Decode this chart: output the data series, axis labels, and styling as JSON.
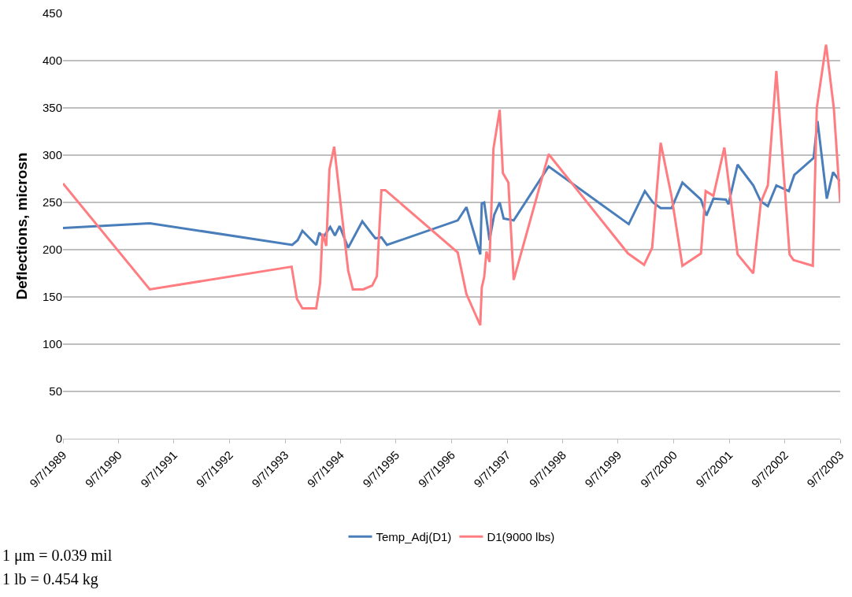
{
  "chart_data": {
    "type": "line",
    "ylabel": "Deflections, microsn",
    "xlim": [
      "1989-09-07",
      "2003-09-07"
    ],
    "xticks": [
      {
        "value": "1989-09-07",
        "label": "9/7/1989"
      },
      {
        "value": "1990-09-07",
        "label": "9/7/1990"
      },
      {
        "value": "1991-09-07",
        "label": "9/7/1991"
      },
      {
        "value": "1992-09-07",
        "label": "9/7/1992"
      },
      {
        "value": "1993-09-07",
        "label": "9/7/1993"
      },
      {
        "value": "1994-09-07",
        "label": "9/7/1994"
      },
      {
        "value": "1995-09-07",
        "label": "9/7/1995"
      },
      {
        "value": "1996-09-07",
        "label": "9/7/1996"
      },
      {
        "value": "1997-09-07",
        "label": "9/7/1997"
      },
      {
        "value": "1998-09-07",
        "label": "9/7/1998"
      },
      {
        "value": "1999-09-07",
        "label": "9/7/1999"
      },
      {
        "value": "2000-09-07",
        "label": "9/7/2000"
      },
      {
        "value": "2001-09-07",
        "label": "9/7/2001"
      },
      {
        "value": "2002-09-07",
        "label": "9/7/2002"
      },
      {
        "value": "2003-09-07",
        "label": "9/7/2003"
      }
    ],
    "ylim": [
      0,
      450
    ],
    "yticks": [
      0,
      50,
      100,
      150,
      200,
      250,
      300,
      350,
      400,
      450
    ],
    "grid": "y",
    "legend": "bottom",
    "marker": "none",
    "line_style": "solid",
    "series": [
      {
        "name": "Temp_Adj(D1)",
        "color": "#4a7ebb",
        "x": [
          "1989-09-07",
          "1991-04-01",
          "1993-10-24",
          "1993-11-29",
          "1993-12-30",
          "1994-03-31",
          "1994-04-21",
          "1994-05-16",
          "1994-07-01",
          "1994-08-01",
          "1994-09-01",
          "1994-10-27",
          "1995-01-28",
          "1995-04-24",
          "1995-06-03",
          "1995-07-09",
          "1996-10-17",
          "1996-12-13",
          "1997-03-14",
          "1997-03-24",
          "1997-04-09",
          "1997-05-14",
          "1997-06-14",
          "1997-07-20",
          "1997-08-15",
          "1997-10-20",
          "1998-06-07",
          "1999-11-16",
          "2000-03-01",
          "2000-04-23",
          "2000-06-13",
          "2000-08-24",
          "2000-11-03",
          "2001-03-05",
          "2001-04-10",
          "2001-05-26",
          "2001-08-16",
          "2001-09-02",
          "2001-11-01",
          "2002-02-12",
          "2002-04-03",
          "2002-05-19",
          "2002-07-14",
          "2002-10-04",
          "2002-11-09",
          "2003-03-16",
          "2003-04-11",
          "2003-06-11",
          "2003-07-22",
          "2003-09-07"
        ],
        "values": [
          223,
          228,
          205,
          210,
          220,
          205,
          218,
          213,
          224,
          215,
          225,
          202,
          230,
          212,
          213,
          205,
          231,
          245,
          195,
          249,
          250,
          210,
          237,
          250,
          233,
          231,
          288,
          227,
          262,
          250,
          244,
          244,
          271,
          253,
          236,
          254,
          253,
          248,
          290,
          268,
          251,
          246,
          268,
          262,
          279,
          297,
          336,
          254,
          282,
          272
        ]
      },
      {
        "name": "D1(9000 lbs)",
        "color": "#ff7c80",
        "x": [
          "1989-09-07",
          "1991-04-01",
          "1993-10-20",
          "1993-11-24",
          "1993-12-30",
          "1994-03-31",
          "1994-04-26",
          "1994-05-11",
          "1994-06-05",
          "1994-06-26",
          "1994-07-27",
          "1994-10-27",
          "1994-11-27",
          "1995-02-02",
          "1995-04-03",
          "1995-05-04",
          "1995-06-03",
          "1995-06-29",
          "1996-10-17",
          "1996-12-13",
          "1997-03-14",
          "1997-03-24",
          "1997-04-09",
          "1997-04-24",
          "1997-05-14",
          "1997-06-09",
          "1997-07-20",
          "1997-08-10",
          "1997-09-15",
          "1997-10-20",
          "1998-06-07",
          "1999-11-11",
          "2000-02-25",
          "2000-04-18",
          "2000-06-13",
          "2000-08-24",
          "2000-11-03",
          "2001-03-05",
          "2001-04-05",
          "2001-05-26",
          "2001-08-06",
          "2001-11-01",
          "2002-02-12",
          "2002-04-03",
          "2002-05-19",
          "2002-07-14",
          "2002-10-09",
          "2002-11-04",
          "2003-03-11",
          "2003-04-06",
          "2003-06-06",
          "2003-07-27",
          "2003-09-07"
        ],
        "values": [
          270,
          158,
          182,
          148,
          138,
          138,
          165,
          217,
          204,
          285,
          309,
          178,
          158,
          158,
          162,
          172,
          263,
          263,
          197,
          153,
          120,
          160,
          171,
          198,
          187,
          307,
          348,
          281,
          271,
          168,
          301,
          196,
          184,
          202,
          313,
          256,
          183,
          196,
          262,
          257,
          308,
          195,
          175,
          250,
          268,
          389,
          195,
          189,
          183,
          350,
          417,
          350,
          250
        ]
      }
    ],
    "annotations": [
      "1 μm = 0.039 mil",
      "1 lb = 0.454 kg"
    ]
  }
}
